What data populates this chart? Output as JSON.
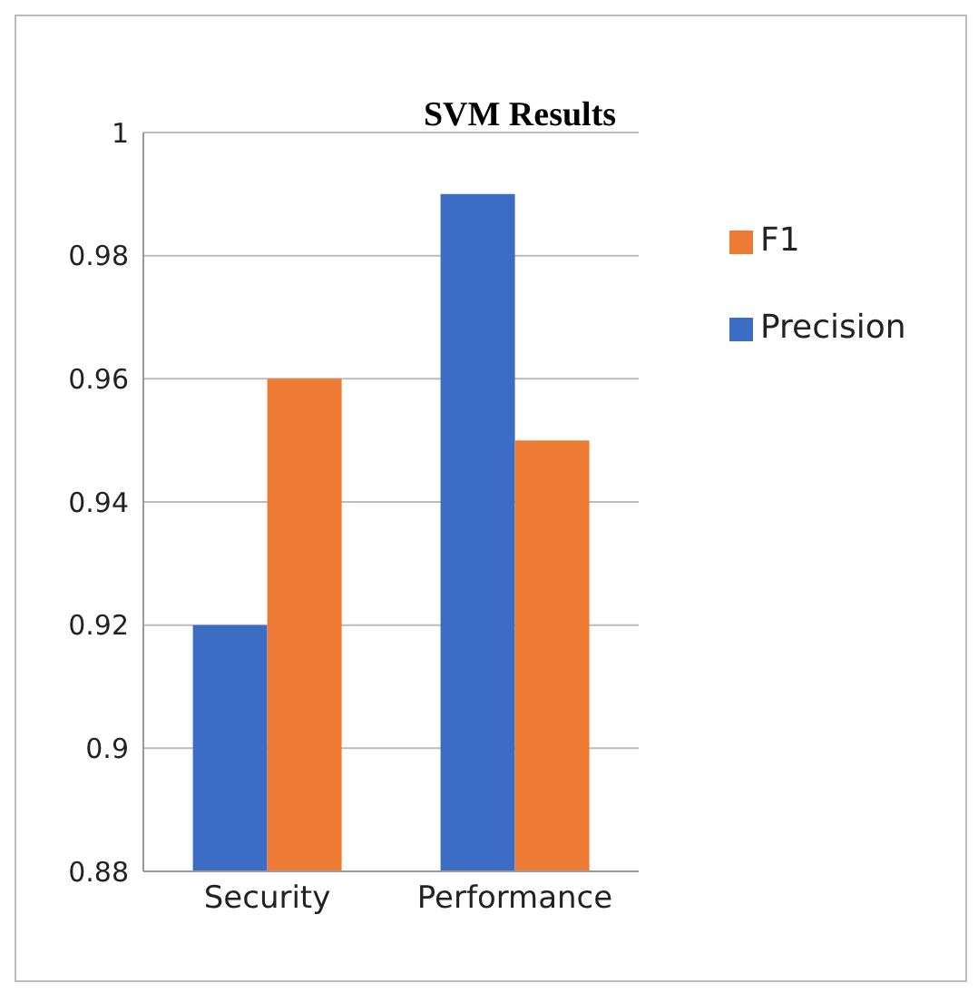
{
  "chart_data": {
    "type": "bar",
    "title": "SVM Results",
    "categories": [
      "Security",
      "Performance"
    ],
    "series": [
      {
        "name": "Precision",
        "color": "#3d6cc4",
        "values": [
          0.92,
          0.99
        ]
      },
      {
        "name": "F1",
        "color": "#ee7b33",
        "values": [
          0.96,
          0.95
        ]
      }
    ],
    "ylim": [
      0.88,
      1
    ],
    "yticks": [
      0.88,
      0.9,
      0.92,
      0.94,
      0.96,
      0.98,
      1
    ],
    "grid": "y",
    "legend": "top right"
  }
}
